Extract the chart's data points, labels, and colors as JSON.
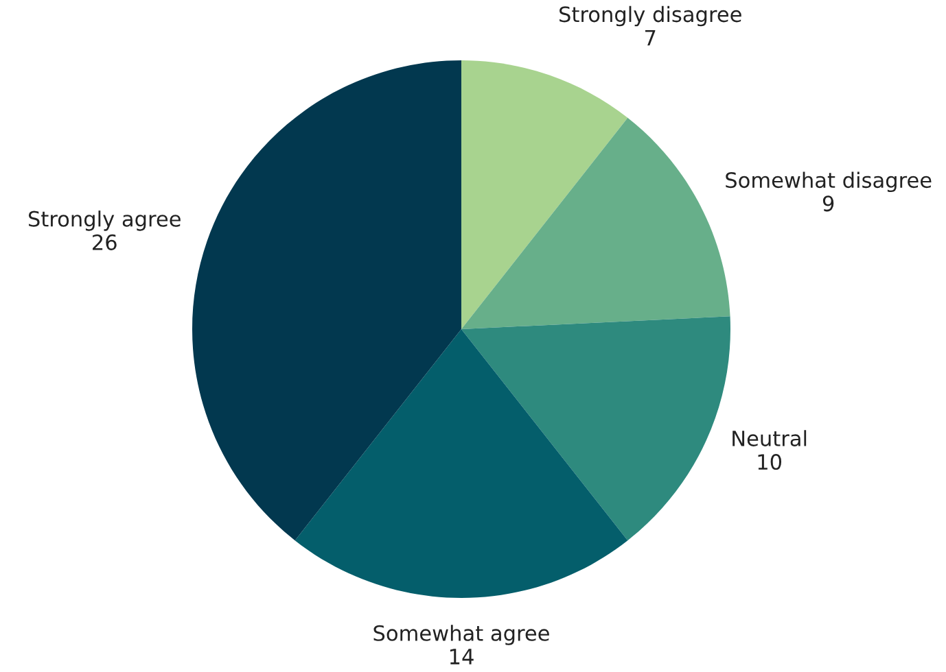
{
  "chart_data": {
    "type": "pie",
    "categories": [
      "Strongly disagree",
      "Somewhat disagree",
      "Neutral",
      "Somewhat agree",
      "Strongly agree"
    ],
    "values": [
      7,
      9,
      10,
      14,
      26
    ],
    "colors": [
      "#a8d38f",
      "#67af8a",
      "#2e8a7e",
      "#045e6b",
      "#02384f"
    ],
    "data_labels": true,
    "legend": false
  }
}
